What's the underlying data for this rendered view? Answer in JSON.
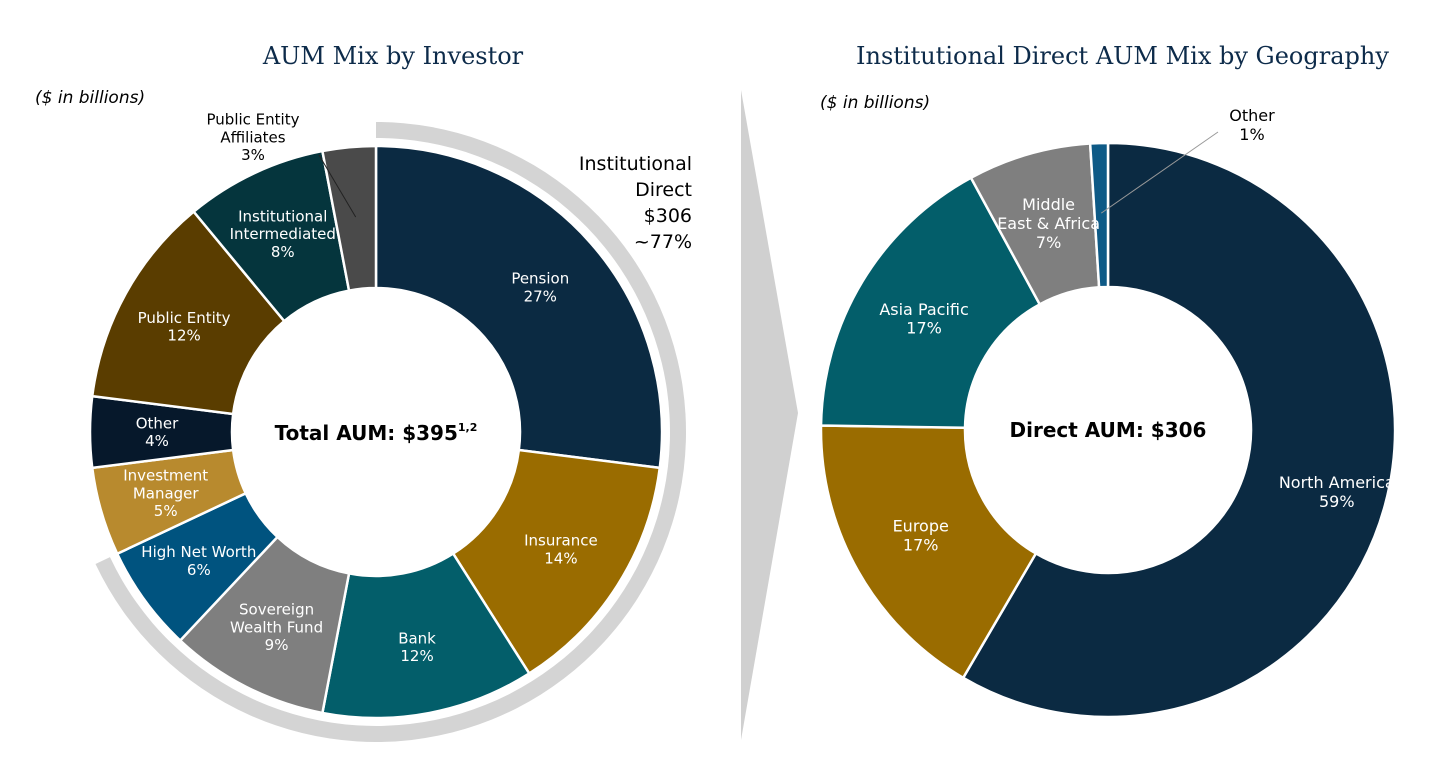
{
  "chart_data": [
    {
      "type": "pie",
      "title": "AUM Mix by Investor",
      "units_note": "($ in billions)",
      "center_label": "Total AUM: $395",
      "center_label_superscript": "1,2",
      "slices": [
        {
          "label": "Pension",
          "value": 27,
          "display": "27%",
          "color": "#0b2a42",
          "text_color": "#ffffff"
        },
        {
          "label": "Insurance",
          "value": 14,
          "display": "14%",
          "color": "#9a6c00",
          "text_color": "#ffffff"
        },
        {
          "label": "Bank",
          "value": 12,
          "display": "12%",
          "color": "#035e6a",
          "text_color": "#ffffff"
        },
        {
          "label": "Sovereign Wealth Fund",
          "value": 9,
          "display": "9%",
          "color": "#7f7f7f",
          "text_color": "#ffffff"
        },
        {
          "label": "High Net Worth",
          "value": 6,
          "display": "6%",
          "color": "#00537f",
          "text_color": "#ffffff"
        },
        {
          "label": "Investment Manager",
          "value": 5,
          "display": "5%",
          "color": "#b88a2e",
          "text_color": "#ffffff"
        },
        {
          "label": "Other",
          "value": 4,
          "display": "4%",
          "color": "#06182b",
          "text_color": "#ffffff"
        },
        {
          "label": "Public Entity",
          "value": 12,
          "display": "12%",
          "color": "#5a3d00",
          "text_color": "#ffffff"
        },
        {
          "label": "Institutional Intermediated",
          "value": 8,
          "display": "8%",
          "color": "#05353d",
          "text_color": "#ffffff"
        },
        {
          "label": "Public Entity Affiliates",
          "value": 3,
          "display": "3%",
          "color": "#4a4a4a",
          "text_color": "#000000"
        }
      ],
      "bracket": {
        "label_lines": [
          "Institutional",
          "Direct",
          "$306",
          "~77%"
        ],
        "color": "#d4d4d4"
      }
    },
    {
      "type": "pie",
      "title": "Institutional Direct AUM Mix by Geography",
      "units_note": "($ in billions)",
      "center_label": "Direct AUM: $306",
      "slices": [
        {
          "label": "North America",
          "value": 59,
          "display": "59%",
          "color": "#0b2a42",
          "text_color": "#ffffff"
        },
        {
          "label": "Europe",
          "value": 17,
          "display": "17%",
          "color": "#9a6c00",
          "text_color": "#ffffff"
        },
        {
          "label": "Asia Pacific",
          "value": 17,
          "display": "17%",
          "color": "#035e6a",
          "text_color": "#ffffff"
        },
        {
          "label": "Middle East & Africa",
          "value": 7,
          "display": "7%",
          "color": "#7f7f7f",
          "text_color": "#ffffff"
        },
        {
          "label": "Other",
          "value": 1,
          "display": "1%",
          "color": "#0e5a86",
          "text_color": "#000000"
        }
      ]
    }
  ],
  "divider_color": "#d0d0d0"
}
